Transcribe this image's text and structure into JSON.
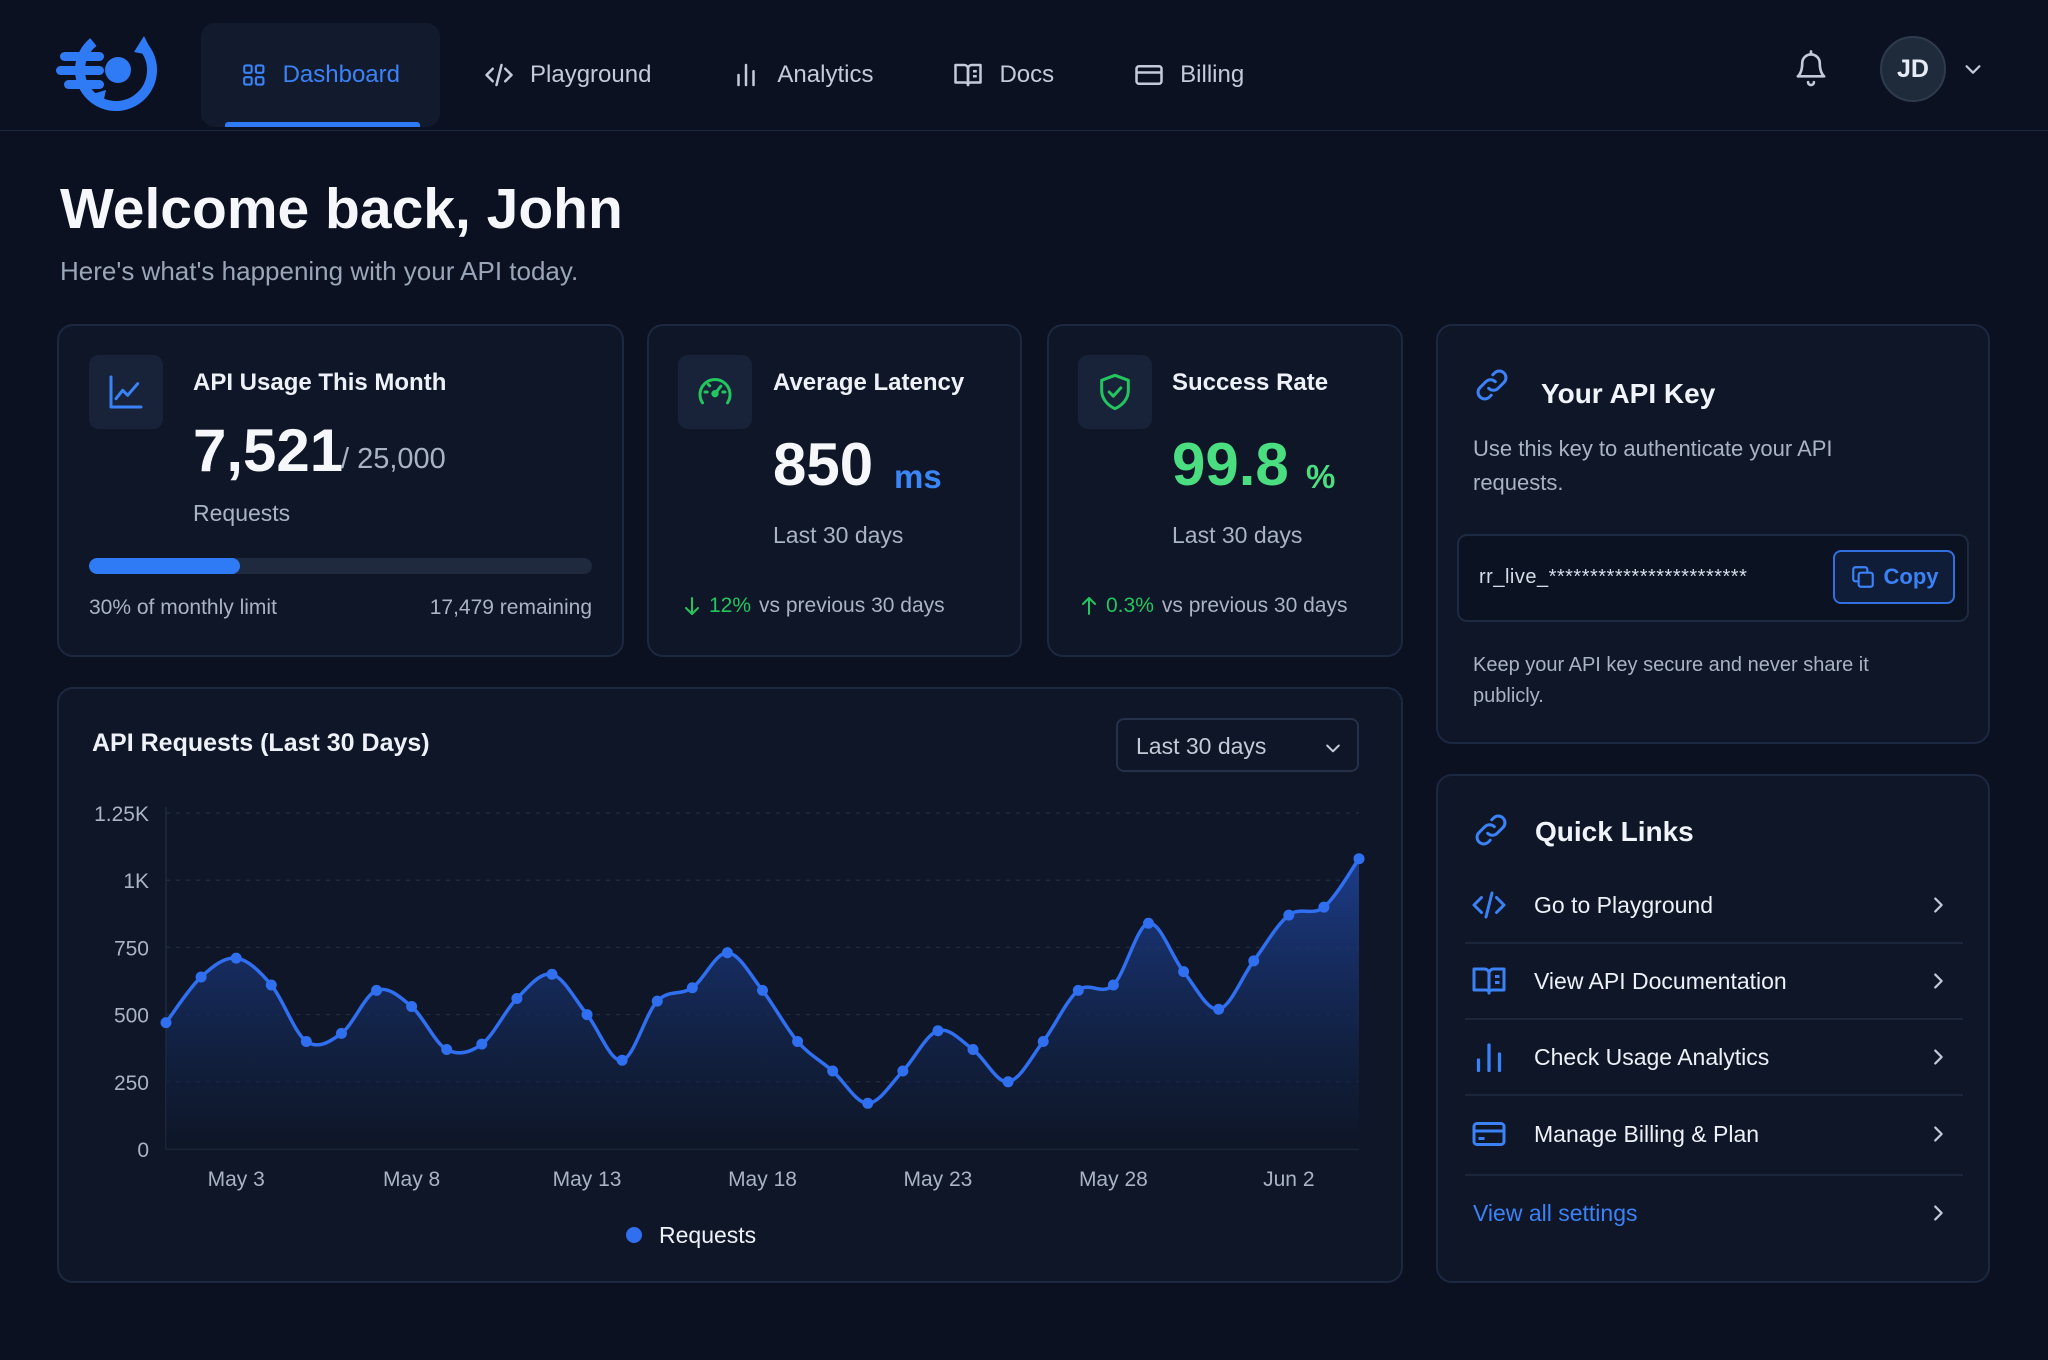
{
  "colors": {
    "background": "#0b1120",
    "card": "#0e1627",
    "accent": "#2f7af5",
    "success": "#22c55e",
    "text": "#e6ebf5",
    "muted": "#aab3c3"
  },
  "nav": {
    "logo": "app-logo-icon",
    "items": [
      {
        "label": "Dashboard",
        "icon": "grid-icon",
        "active": true
      },
      {
        "label": "Playground",
        "icon": "code-icon",
        "active": false
      },
      {
        "label": "Analytics",
        "icon": "bar-chart-icon",
        "active": false
      },
      {
        "label": "Docs",
        "icon": "book-icon",
        "active": false
      },
      {
        "label": "Billing",
        "icon": "credit-card-icon",
        "active": false
      }
    ],
    "avatar_initials": "JD"
  },
  "welcome": {
    "title": "Welcome back, John",
    "subtitle": "Here's what's happening with your API today."
  },
  "stats": {
    "usage": {
      "title": "API Usage This Month",
      "value": "7,521",
      "limit": "/ 25,000",
      "unit": "Requests",
      "progress": 0.3,
      "progress_label": "30% of monthly limit",
      "remaining": "17,479 remaining"
    },
    "latency": {
      "title": "Average Latency",
      "value": "850",
      "unit": "ms",
      "period": "Last 30 days",
      "trend_pct": "12%",
      "trend_text": "vs previous 30 days",
      "trend_direction": "down"
    },
    "success": {
      "title": "Success Rate",
      "value": "99.8",
      "unit": "%",
      "period": "Last 30 days",
      "trend_pct": "0.3%",
      "trend_text": "vs previous 30 days",
      "trend_direction": "up"
    }
  },
  "api_key": {
    "title": "Your API Key",
    "description": "Use this key to authenticate your API requests.",
    "masked_key": "rr_live_************************",
    "copy_label": "Copy",
    "note": "Keep your API key secure and never share it publicly."
  },
  "chart": {
    "title": "API Requests (Last 30 Days)",
    "range_selected": "Last 30 days"
  },
  "chart_data": {
    "type": "area",
    "title": "API Requests (Last 30 Days)",
    "xlabel": "",
    "ylabel": "",
    "ylim": [
      0,
      1250
    ],
    "y_ticks": [
      "0",
      "250",
      "500",
      "750",
      "1K",
      "1.25K"
    ],
    "x_ticks": [
      "May 3",
      "May 8",
      "May 13",
      "May 18",
      "May 23",
      "May 28",
      "Jun 2"
    ],
    "grid": true,
    "legend_position": "bottom",
    "series": [
      {
        "name": "Requests",
        "color": "#2f6ff0",
        "x": [
          "May 1",
          "May 2",
          "May 3",
          "May 4",
          "May 5",
          "May 6",
          "May 7",
          "May 8",
          "May 9",
          "May 10",
          "May 11",
          "May 12",
          "May 13",
          "May 14",
          "May 15",
          "May 16",
          "May 17",
          "May 18",
          "May 19",
          "May 20",
          "May 21",
          "May 22",
          "May 23",
          "May 24",
          "May 25",
          "May 26",
          "May 27",
          "May 28",
          "May 29",
          "May 30",
          "May 31",
          "Jun 1",
          "Jun 2",
          "Jun 3",
          "Jun 4"
        ],
        "values": [
          470,
          640,
          710,
          610,
          400,
          430,
          590,
          530,
          370,
          390,
          560,
          650,
          500,
          330,
          550,
          600,
          730,
          590,
          400,
          290,
          170,
          290,
          440,
          370,
          250,
          400,
          590,
          610,
          840,
          660,
          520,
          700,
          870,
          900,
          1080
        ]
      }
    ]
  },
  "quick_links": {
    "title": "Quick Links",
    "items": [
      {
        "label": "Go to Playground",
        "icon": "code-icon"
      },
      {
        "label": "View API Documentation",
        "icon": "book-icon"
      },
      {
        "label": "Check Usage Analytics",
        "icon": "bar-chart-icon"
      },
      {
        "label": "Manage Billing & Plan",
        "icon": "credit-card-icon"
      }
    ],
    "view_all": "View all settings"
  }
}
